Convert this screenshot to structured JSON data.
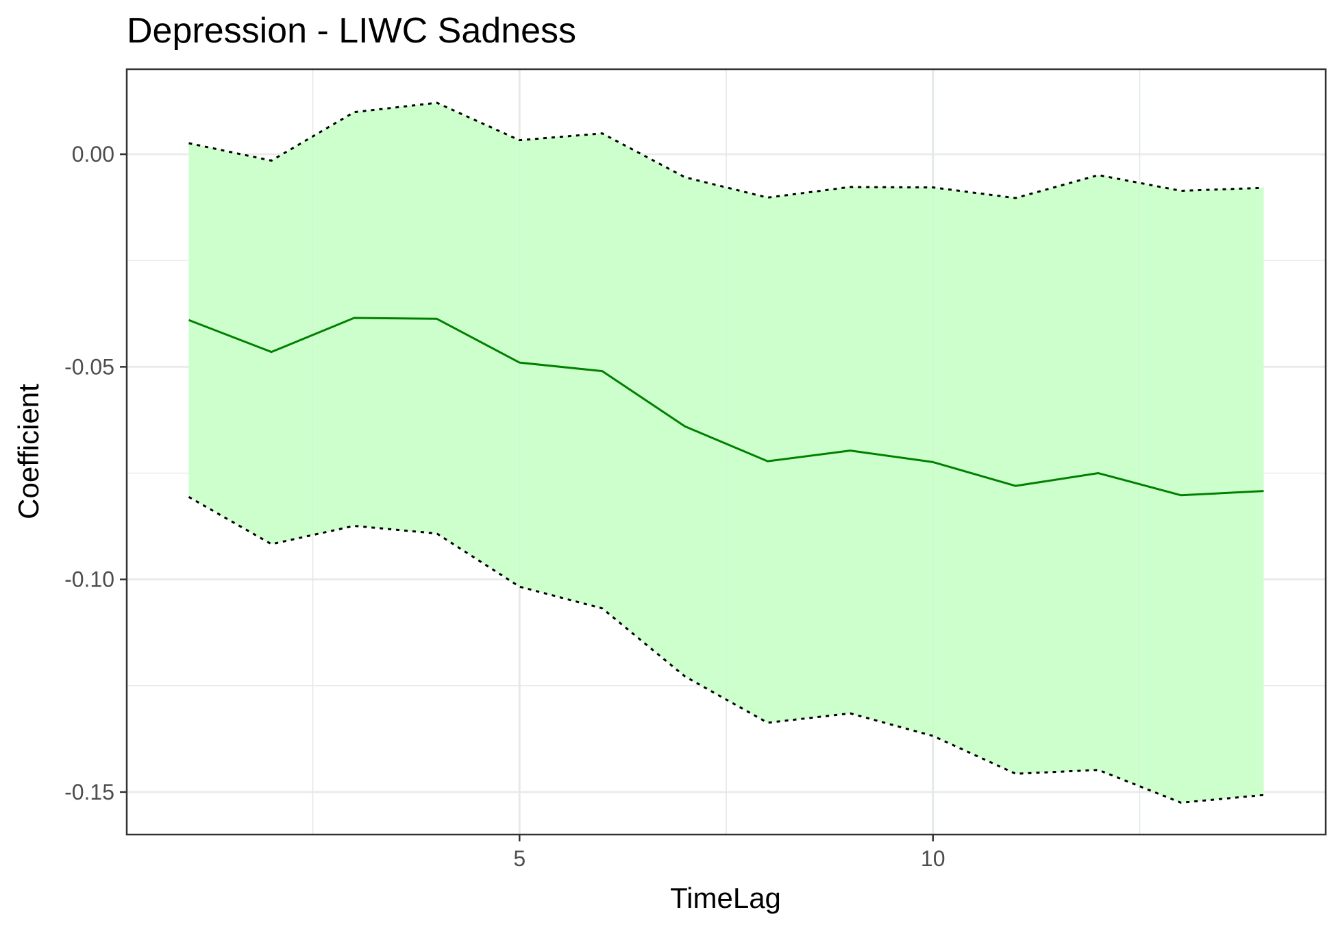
{
  "chart_data": {
    "type": "line",
    "title": "Depression - LIWC Sadness",
    "xlabel": "TimeLag",
    "ylabel": "Coefficient",
    "xlim": [
      0.25,
      14.75
    ],
    "ylim": [
      -0.16,
      0.02
    ],
    "x_ticks": [
      5,
      10
    ],
    "x_tick_labels": [
      "5",
      "10"
    ],
    "x_minor_ticks": [
      2.5,
      7.5,
      12.5
    ],
    "y_ticks": [
      0.0,
      -0.05,
      -0.1,
      -0.15
    ],
    "y_tick_labels": [
      "0.00",
      "-0.05",
      "-0.10",
      "-0.15"
    ],
    "y_minor_ticks": [
      -0.025,
      -0.075,
      -0.125
    ],
    "grid": true,
    "x": [
      1,
      2,
      3,
      4,
      5,
      6,
      7,
      8,
      9,
      10,
      11,
      12,
      13,
      14
    ],
    "series": [
      {
        "role": "estimate",
        "values": [
          -0.039,
          -0.0465,
          -0.0385,
          -0.0387,
          -0.049,
          -0.051,
          -0.064,
          -0.0722,
          -0.0697,
          -0.0724,
          -0.078,
          -0.075,
          -0.0802,
          -0.0792
        ],
        "color": "#008000",
        "style": "solid"
      },
      {
        "role": "upper",
        "values": [
          0.0026,
          -0.0015,
          0.0099,
          0.0121,
          0.0033,
          0.0049,
          -0.0054,
          -0.0102,
          -0.0077,
          -0.0078,
          -0.0103,
          -0.0049,
          -0.0086,
          -0.0079
        ],
        "color": "#000000",
        "style": "dotted"
      },
      {
        "role": "lower",
        "values": [
          -0.0806,
          -0.0917,
          -0.0874,
          -0.0892,
          -0.1017,
          -0.1068,
          -0.1228,
          -0.1337,
          -0.1315,
          -0.1368,
          -0.1457,
          -0.1448,
          -0.1525,
          -0.1507
        ],
        "color": "#000000",
        "style": "dotted"
      }
    ],
    "ribbon_color": "#ccffcc",
    "panel_border_color": "#333333",
    "grid_color": "#ebebeb"
  }
}
